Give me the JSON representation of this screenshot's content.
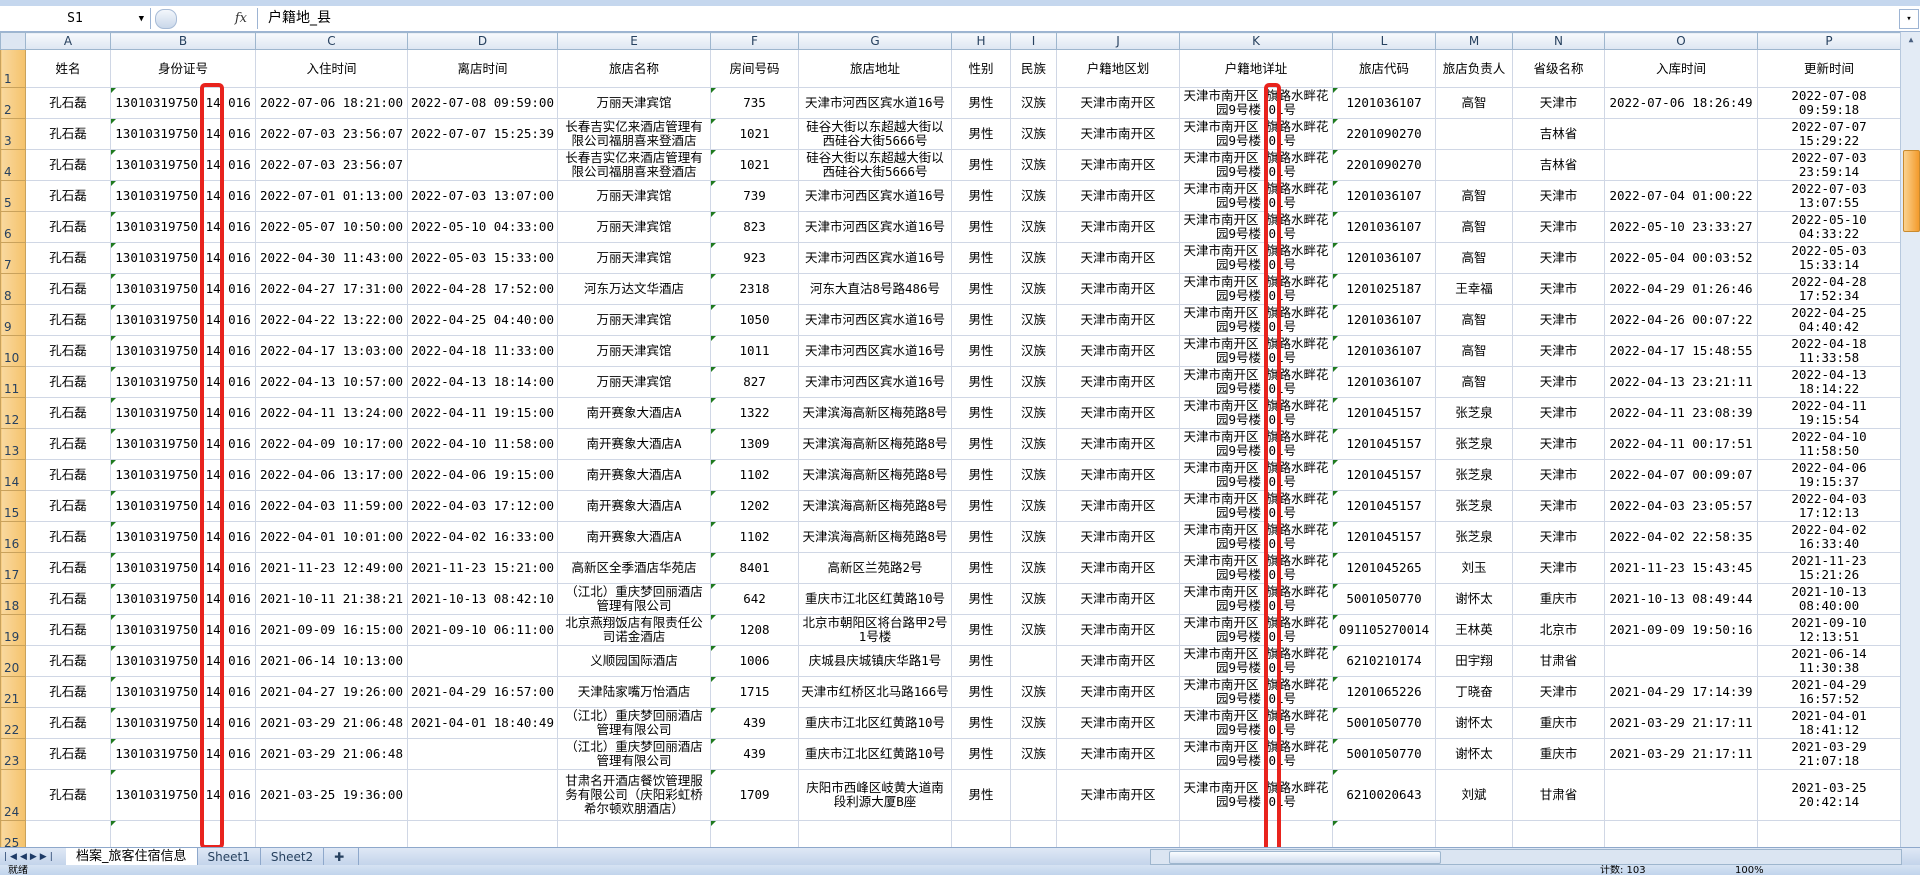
{
  "formula_bar": {
    "name_box": "S1",
    "fx_label": "fx",
    "value": "户籍地_县"
  },
  "columns": [
    "A",
    "B",
    "C",
    "D",
    "E",
    "F",
    "G",
    "H",
    "I",
    "J",
    "K",
    "L",
    "M",
    "N",
    "O",
    "P"
  ],
  "header_row": [
    "姓名",
    "身份证号",
    "入住时间",
    "离店时间",
    "旅店名称",
    "房间号码",
    "旅店地址",
    "性别",
    "民族",
    "户籍地区划",
    "户籍地详址",
    "旅店代码",
    "旅店负责人",
    "省级名称",
    "入库时间",
    "更新时间"
  ],
  "rows": [
    [
      "孔石磊",
      "13010319750 14 016",
      "2022-07-06 18:21:00",
      "2022-07-08 09:59:00",
      "万丽天津宾馆",
      "735",
      "天津市河西区宾水道16号",
      "男性",
      "汉族",
      "天津市南开区",
      "天津市南开区 旗路水畔花园9号楼 01号",
      "1201036107",
      "高智",
      "天津市",
      "2022-07-06 18:26:49",
      "2022-07-08 09:59:18"
    ],
    [
      "孔石磊",
      "13010319750 14 016",
      "2022-07-03 23:56:07",
      "2022-07-07 15:25:39",
      "长春吉实亿来酒店管理有限公司福朋喜来登酒店",
      "1021",
      "硅谷大街以东超越大街以西硅谷大街5666号",
      "男性",
      "汉族",
      "天津市南开区",
      "天津市南开区 旗路水畔花园9号楼 01号",
      "2201090270",
      "",
      "吉林省",
      "",
      "2022-07-07 15:29:22"
    ],
    [
      "孔石磊",
      "13010319750 14 016",
      "2022-07-03 23:56:07",
      "",
      "长春吉实亿来酒店管理有限公司福朋喜来登酒店",
      "1021",
      "硅谷大街以东超越大街以西硅谷大街5666号",
      "男性",
      "汉族",
      "天津市南开区",
      "天津市南开区 旗路水畔花园9号楼 01号",
      "2201090270",
      "",
      "吉林省",
      "",
      "2022-07-03 23:59:14"
    ],
    [
      "孔石磊",
      "13010319750 14 016",
      "2022-07-01 01:13:00",
      "2022-07-03 13:07:00",
      "万丽天津宾馆",
      "739",
      "天津市河西区宾水道16号",
      "男性",
      "汉族",
      "天津市南开区",
      "天津市南开区 旗路水畔花园9号楼 01号",
      "1201036107",
      "高智",
      "天津市",
      "2022-07-04 01:00:22",
      "2022-07-03 13:07:55"
    ],
    [
      "孔石磊",
      "13010319750 14 016",
      "2022-05-07 10:50:00",
      "2022-05-10 04:33:00",
      "万丽天津宾馆",
      "823",
      "天津市河西区宾水道16号",
      "男性",
      "汉族",
      "天津市南开区",
      "天津市南开区 旗路水畔花园9号楼 01号",
      "1201036107",
      "高智",
      "天津市",
      "2022-05-10 23:33:27",
      "2022-05-10 04:33:22"
    ],
    [
      "孔石磊",
      "13010319750 14 016",
      "2022-04-30 11:43:00",
      "2022-05-03 15:33:00",
      "万丽天津宾馆",
      "923",
      "天津市河西区宾水道16号",
      "男性",
      "汉族",
      "天津市南开区",
      "天津市南开区 旗路水畔花园9号楼 01号",
      "1201036107",
      "高智",
      "天津市",
      "2022-05-04 00:03:52",
      "2022-05-03 15:33:14"
    ],
    [
      "孔石磊",
      "13010319750 14 016",
      "2022-04-27 17:31:00",
      "2022-04-28 17:52:00",
      "河东万达文华酒店",
      "2318",
      "河东大直沽8号路486号",
      "男性",
      "汉族",
      "天津市南开区",
      "天津市南开区 旗路水畔花园9号楼 01号",
      "1201025187",
      "王幸福",
      "天津市",
      "2022-04-29 01:26:46",
      "2022-04-28 17:52:34"
    ],
    [
      "孔石磊",
      "13010319750 14 016",
      "2022-04-22 13:22:00",
      "2022-04-25 04:40:00",
      "万丽天津宾馆",
      "1050",
      "天津市河西区宾水道16号",
      "男性",
      "汉族",
      "天津市南开区",
      "天津市南开区 旗路水畔花园9号楼 01号",
      "1201036107",
      "高智",
      "天津市",
      "2022-04-26 00:07:22",
      "2022-04-25 04:40:42"
    ],
    [
      "孔石磊",
      "13010319750 14 016",
      "2022-04-17 13:03:00",
      "2022-04-18 11:33:00",
      "万丽天津宾馆",
      "1011",
      "天津市河西区宾水道16号",
      "男性",
      "汉族",
      "天津市南开区",
      "天津市南开区 旗路水畔花园9号楼 01号",
      "1201036107",
      "高智",
      "天津市",
      "2022-04-17 15:48:55",
      "2022-04-18 11:33:58"
    ],
    [
      "孔石磊",
      "13010319750 14 016",
      "2022-04-13 10:57:00",
      "2022-04-13 18:14:00",
      "万丽天津宾馆",
      "827",
      "天津市河西区宾水道16号",
      "男性",
      "汉族",
      "天津市南开区",
      "天津市南开区 旗路水畔花园9号楼 01号",
      "1201036107",
      "高智",
      "天津市",
      "2022-04-13 23:21:11",
      "2022-04-13 18:14:22"
    ],
    [
      "孔石磊",
      "13010319750 14 016",
      "2022-04-11 13:24:00",
      "2022-04-11 19:15:00",
      "南开赛象大酒店A",
      "1322",
      "天津滨海高新区梅苑路8号",
      "男性",
      "汉族",
      "天津市南开区",
      "天津市南开区 旗路水畔花园9号楼 01号",
      "1201045157",
      "张芝泉",
      "天津市",
      "2022-04-11 23:08:39",
      "2022-04-11 19:15:54"
    ],
    [
      "孔石磊",
      "13010319750 14 016",
      "2022-04-09 10:17:00",
      "2022-04-10 11:58:00",
      "南开赛象大酒店A",
      "1309",
      "天津滨海高新区梅苑路8号",
      "男性",
      "汉族",
      "天津市南开区",
      "天津市南开区 旗路水畔花园9号楼 01号",
      "1201045157",
      "张芝泉",
      "天津市",
      "2022-04-11 00:17:51",
      "2022-04-10 11:58:50"
    ],
    [
      "孔石磊",
      "13010319750 14 016",
      "2022-04-06 13:17:00",
      "2022-04-06 19:15:00",
      "南开赛象大酒店A",
      "1102",
      "天津滨海高新区梅苑路8号",
      "男性",
      "汉族",
      "天津市南开区",
      "天津市南开区 旗路水畔花园9号楼 01号",
      "1201045157",
      "张芝泉",
      "天津市",
      "2022-04-07 00:09:07",
      "2022-04-06 19:15:37"
    ],
    [
      "孔石磊",
      "13010319750 14 016",
      "2022-04-03 11:59:00",
      "2022-04-03 17:12:00",
      "南开赛象大酒店A",
      "1202",
      "天津滨海高新区梅苑路8号",
      "男性",
      "汉族",
      "天津市南开区",
      "天津市南开区 旗路水畔花园9号楼 01号",
      "1201045157",
      "张芝泉",
      "天津市",
      "2022-04-03 23:05:57",
      "2022-04-03 17:12:13"
    ],
    [
      "孔石磊",
      "13010319750 14 016",
      "2022-04-01 10:01:00",
      "2022-04-02 16:33:00",
      "南开赛象大酒店A",
      "1102",
      "天津滨海高新区梅苑路8号",
      "男性",
      "汉族",
      "天津市南开区",
      "天津市南开区 旗路水畔花园9号楼 01号",
      "1201045157",
      "张芝泉",
      "天津市",
      "2022-04-02 22:58:35",
      "2022-04-02 16:33:40"
    ],
    [
      "孔石磊",
      "13010319750 14 016",
      "2021-11-23 12:49:00",
      "2021-11-23 15:21:00",
      "高新区全季酒店华苑店",
      "8401",
      "高新区兰苑路2号",
      "男性",
      "汉族",
      "天津市南开区",
      "天津市南开区 旗路水畔花园9号楼 01号",
      "1201045265",
      "刘玉",
      "天津市",
      "2021-11-23 15:43:45",
      "2021-11-23 15:21:26"
    ],
    [
      "孔石磊",
      "13010319750 14 016",
      "2021-10-11 21:38:21",
      "2021-10-13 08:42:10",
      "（江北）重庆梦回丽酒店管理有限公司",
      "642",
      "重庆市江北区红黄路10号",
      "男性",
      "汉族",
      "天津市南开区",
      "天津市南开区 旗路水畔花园9号楼 01号",
      "5001050770",
      "谢怀太",
      "重庆市",
      "2021-10-13 08:49:44",
      "2021-10-13 08:40:00"
    ],
    [
      "孔石磊",
      "13010319750 14 016",
      "2021-09-09 16:15:00",
      "2021-09-10 06:11:00",
      "北京燕翔饭店有限责任公司诺金酒店",
      "1208",
      "北京市朝阳区将台路甲2号1号楼",
      "男性",
      "汉族",
      "天津市南开区",
      "天津市南开区 旗路水畔花园9号楼 01号",
      "091105270014",
      "王林英",
      "北京市",
      "2021-09-09 19:50:16",
      "2021-09-10 12:13:51"
    ],
    [
      "孔石磊",
      "13010319750 14 016",
      "2021-06-14 10:13:00",
      "",
      "义顺园国际酒店",
      "1006",
      "庆城县庆城镇庆华路1号",
      "男性",
      "",
      "天津市南开区",
      "天津市南开区 旗路水畔花园9号楼 01号",
      "6210210174",
      "田宇翔",
      "甘肃省",
      "",
      "2021-06-14 11:30:38"
    ],
    [
      "孔石磊",
      "13010319750 14 016",
      "2021-04-27 19:26:00",
      "2021-04-29 16:57:00",
      "天津陆家嘴万怡酒店",
      "1715",
      "天津市红桥区北马路166号",
      "男性",
      "汉族",
      "天津市南开区",
      "天津市南开区 旗路水畔花园9号楼 01号",
      "1201065226",
      "丁晓奋",
      "天津市",
      "2021-04-29 17:14:39",
      "2021-04-29 16:57:52"
    ],
    [
      "孔石磊",
      "13010319750 14 016",
      "2021-03-29 21:06:48",
      "2021-04-01 18:40:49",
      "（江北）重庆梦回丽酒店管理有限公司",
      "439",
      "重庆市江北区红黄路10号",
      "男性",
      "汉族",
      "天津市南开区",
      "天津市南开区 旗路水畔花园9号楼 01号",
      "5001050770",
      "谢怀太",
      "重庆市",
      "2021-03-29 21:17:11",
      "2021-04-01 18:41:12"
    ],
    [
      "孔石磊",
      "13010319750 14 016",
      "2021-03-29 21:06:48",
      "",
      "（江北）重庆梦回丽酒店管理有限公司",
      "439",
      "重庆市江北区红黄路10号",
      "男性",
      "汉族",
      "天津市南开区",
      "天津市南开区 旗路水畔花园9号楼 01号",
      "5001050770",
      "谢怀太",
      "重庆市",
      "2021-03-29 21:17:11",
      "2021-03-29 21:07:18"
    ],
    [
      "孔石磊",
      "13010319750 14 016",
      "2021-03-25 19:36:00",
      "",
      "甘肃名开酒店餐饮管理服务有限公司（庆阳彩虹桥希尔顿欢朋酒店）",
      "1709",
      "庆阳市西峰区岐黄大道南段利源大厦B座",
      "男性",
      "",
      "天津市南开区",
      "天津市南开区 旗路水畔花园9号楼 01号",
      "6210020643",
      "刘斌",
      "甘肃省",
      "",
      "2021-03-25 20:42:14"
    ]
  ],
  "sheet_tabs": [
    {
      "label": "档案_旅客住宿信息",
      "active": true
    },
    {
      "label": "Sheet1",
      "active": false
    },
    {
      "label": "Sheet2",
      "active": false
    }
  ],
  "status_bar": {
    "ready": "就绪",
    "count": "计数: 103",
    "zoom": "100%"
  },
  "colors": {
    "highlight_box": "#e8231d",
    "row_header": "#f5c26b",
    "accent": "#c5d7ee"
  }
}
